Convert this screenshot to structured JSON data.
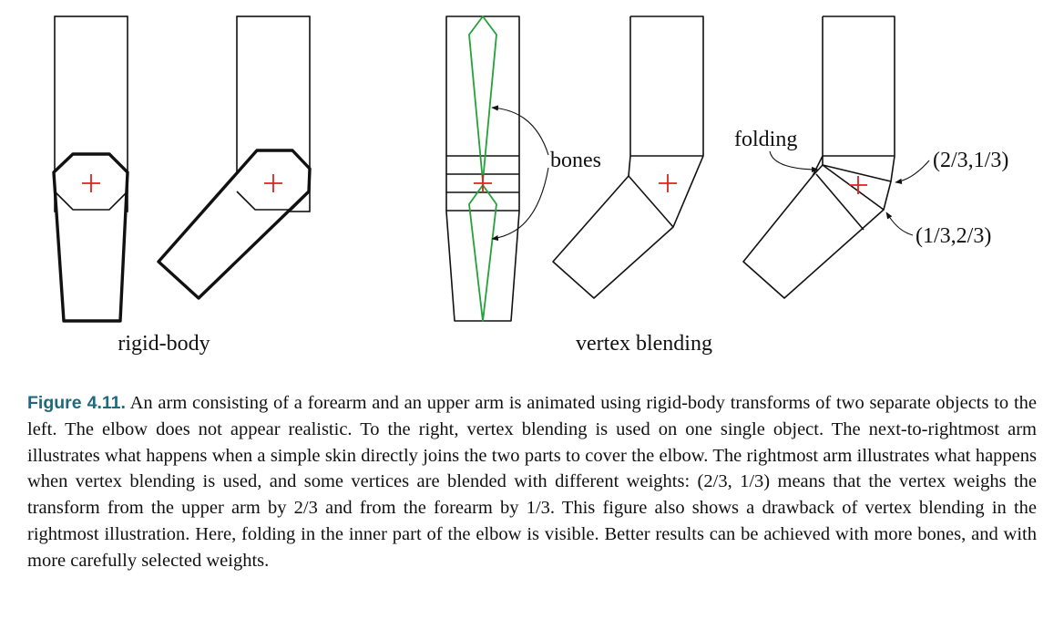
{
  "figure": {
    "group_labels": {
      "rigid_body": "rigid-body",
      "vertex_blending": "vertex blending"
    },
    "annotations": {
      "bones": "bones",
      "folding": "folding",
      "weight_upper": "(2/3,1/3)",
      "weight_lower": "(1/3,2/3)"
    },
    "colors": {
      "outline": "#111111",
      "bone": "#22a33a",
      "joint_marker": "#e02020",
      "caption_label": "#1d6a7e"
    }
  },
  "caption": {
    "label": "Figure 4.11.",
    "text": "An arm consisting of a forearm and an upper arm is animated using rigid-body transforms of two separate objects to the left. The elbow does not appear realistic. To the right, vertex blending is used on one single object. The next-to-rightmost arm illustrates what happens when a simple skin directly joins the two parts to cover the elbow. The rightmost arm illustrates what happens when vertex blending is used, and some vertices are blended with different weights: (2/3, 1/3) means that the vertex weighs the transform from the upper arm by 2/3 and from the forearm by 1/3. This figure also shows a drawback of vertex blending in the rightmost illustration. Here, folding in the inner part of the elbow is visible. Better results can be achieved with more bones, and with more carefully selected weights."
  }
}
